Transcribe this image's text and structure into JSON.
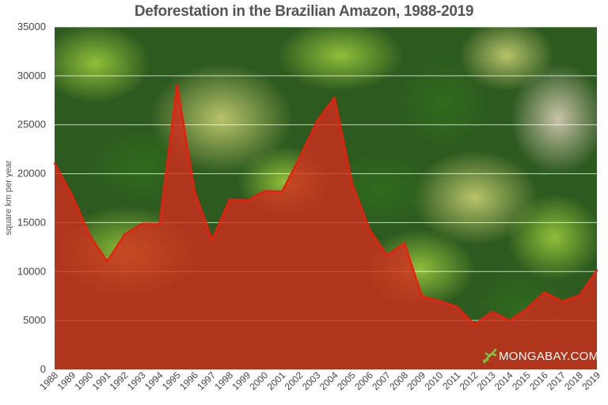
{
  "chart_data": {
    "type": "area",
    "title": "Deforestation in the Brazilian Amazon, 1988-2019",
    "xlabel": "",
    "ylabel": "square km per year",
    "ylim": [
      0,
      35000
    ],
    "yticks": [
      0,
      5000,
      10000,
      15000,
      20000,
      25000,
      30000,
      35000
    ],
    "grid": true,
    "categories": [
      "1988",
      "1989",
      "1990",
      "1991",
      "1992",
      "1993",
      "1994",
      "1995",
      "1996",
      "1997",
      "1998",
      "1999",
      "2000",
      "2001",
      "2002",
      "2003",
      "2004",
      "2005",
      "2006",
      "2007",
      "2008",
      "2009",
      "2010",
      "2011",
      "2012",
      "2013",
      "2014",
      "2015",
      "2016",
      "2017",
      "2018",
      "2019"
    ],
    "values": [
      21050,
      17770,
      13730,
      11030,
      13790,
      14900,
      14900,
      29060,
      18160,
      13230,
      17380,
      17260,
      18230,
      18170,
      21650,
      25400,
      27770,
      19010,
      14290,
      11650,
      12910,
      7460,
      7000,
      6420,
      4570,
      5890,
      5010,
      6210,
      7890,
      6950,
      7540,
      10130
    ],
    "fill_color": "#d42a1e",
    "line_color": "#ee1c0e",
    "background": "aerial photo of rainforest canopy"
  },
  "watermark": {
    "text": "MONGABAY.COM",
    "icon": "lizard-logo-icon",
    "color": "#7dc242"
  }
}
